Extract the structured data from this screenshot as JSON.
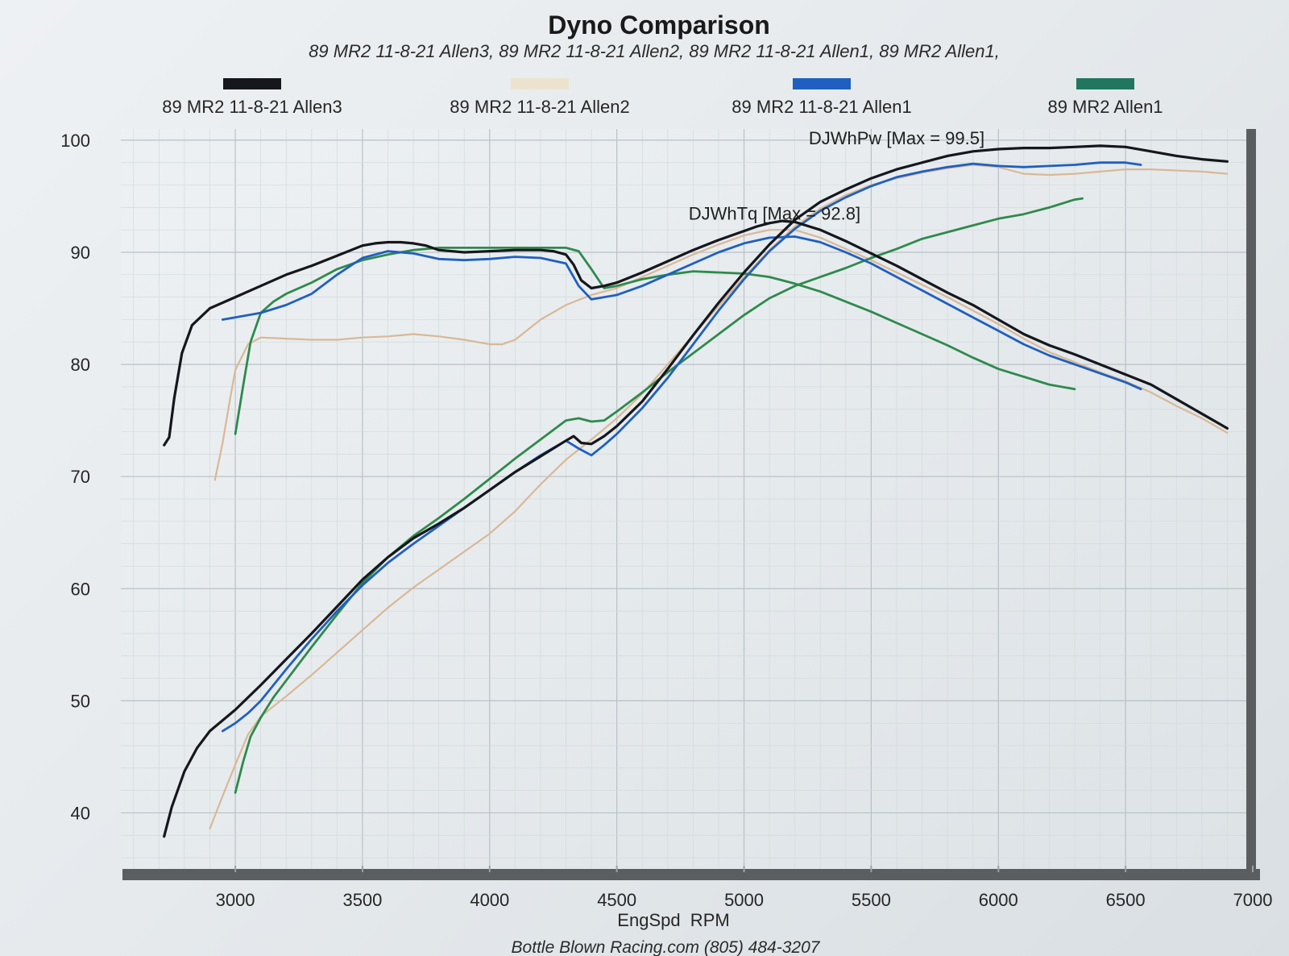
{
  "chart_data": {
    "type": "line",
    "title": "Dyno Comparison",
    "subtitle": "89 MR2 11-8-21 Allen3, 89 MR2 11-8-21 Allen2, 89 MR2 11-8-21 Allen1, 89 MR2 Allen1,",
    "xlabel": "EngSpd  RPM",
    "ylabel": "",
    "footer": "Bottle Blown Racing.com (805) 484-3207",
    "xlim": [
      2550,
      7000
    ],
    "ylim": [
      35,
      101
    ],
    "xticks": [
      "3000",
      "3500",
      "4000",
      "4500",
      "5000",
      "5500",
      "6000",
      "6500",
      "7000"
    ],
    "yticks": [
      "40",
      "50",
      "60",
      "70",
      "80",
      "90",
      "100"
    ],
    "legend_position": "top",
    "grid": true,
    "annotations": [
      {
        "text": "DJWhPw [Max = 99.5]",
        "x": 5600,
        "y": 100.2
      },
      {
        "text": "DJWhTq [Max = 92.8]",
        "x": 5120,
        "y": 93.5
      }
    ],
    "series": [
      {
        "name": "89 MR2 11-8-21 Allen3",
        "color": "#15171c",
        "torque": {
          "x": [
            2720,
            2740,
            2760,
            2790,
            2830,
            2900,
            3000,
            3100,
            3200,
            3300,
            3400,
            3500,
            3550,
            3600,
            3650,
            3700,
            3750,
            3800,
            3900,
            4000,
            4100,
            4200,
            4250,
            4300,
            4330,
            4360,
            4400,
            4450,
            4500,
            4600,
            4700,
            4800,
            4900,
            5000,
            5050,
            5100,
            5150,
            5200,
            5300,
            5400,
            5500,
            5600,
            5700,
            5800,
            5900,
            6000,
            6100,
            6200,
            6300,
            6400,
            6500,
            6600,
            6700,
            6800,
            6900
          ],
          "y": [
            72.8,
            73.5,
            77.0,
            81.0,
            83.5,
            85.0,
            86.0,
            87.0,
            88.0,
            88.8,
            89.7,
            90.6,
            90.8,
            90.9,
            90.9,
            90.8,
            90.6,
            90.2,
            90.0,
            90.1,
            90.2,
            90.2,
            90.1,
            89.8,
            88.9,
            87.5,
            86.8,
            87.0,
            87.3,
            88.2,
            89.2,
            90.2,
            91.1,
            91.9,
            92.3,
            92.6,
            92.8,
            92.7,
            92.0,
            91.0,
            89.9,
            88.8,
            87.6,
            86.4,
            85.3,
            84.0,
            82.7,
            81.7,
            80.9,
            80.0,
            79.1,
            78.2,
            76.9,
            75.6,
            74.3
          ]
        },
        "power": {
          "x": [
            2720,
            2750,
            2800,
            2850,
            2900,
            3000,
            3100,
            3200,
            3300,
            3400,
            3500,
            3600,
            3700,
            3800,
            3900,
            4000,
            4100,
            4200,
            4300,
            4330,
            4360,
            4400,
            4450,
            4500,
            4600,
            4700,
            4800,
            4900,
            5000,
            5100,
            5200,
            5300,
            5400,
            5500,
            5600,
            5700,
            5800,
            5900,
            6000,
            6100,
            6200,
            6300,
            6400,
            6500,
            6600,
            6700,
            6800,
            6900
          ],
          "y": [
            37.9,
            40.5,
            43.7,
            45.8,
            47.3,
            49.2,
            51.4,
            53.7,
            56.0,
            58.4,
            60.8,
            62.8,
            64.5,
            65.8,
            67.2,
            68.8,
            70.4,
            71.8,
            73.2,
            73.6,
            73.0,
            72.9,
            73.6,
            74.5,
            76.7,
            79.6,
            82.6,
            85.5,
            88.2,
            90.7,
            92.9,
            94.5,
            95.6,
            96.6,
            97.4,
            98.0,
            98.6,
            99.0,
            99.2,
            99.3,
            99.3,
            99.4,
            99.5,
            99.4,
            99.0,
            98.6,
            98.3,
            98.1
          ]
        }
      },
      {
        "name": "89 MR2 11-8-21 Allen2",
        "color": "#d9b896",
        "legend_color": "#ece3cf",
        "torque": {
          "x": [
            2920,
            2950,
            2980,
            3000,
            3050,
            3100,
            3200,
            3300,
            3400,
            3500,
            3600,
            3700,
            3800,
            3900,
            4000,
            4050,
            4100,
            4200,
            4300,
            4400,
            4500,
            4600,
            4700,
            4800,
            4900,
            5000,
            5100,
            5200,
            5300,
            5400,
            5500,
            5600,
            5700,
            5800,
            5900,
            6000,
            6100,
            6200,
            6300,
            6400,
            6500,
            6600,
            6700,
            6800,
            6900
          ],
          "y": [
            69.7,
            73.0,
            77.0,
            79.5,
            81.8,
            82.4,
            82.3,
            82.2,
            82.2,
            82.4,
            82.5,
            82.7,
            82.5,
            82.2,
            81.8,
            81.8,
            82.2,
            84.0,
            85.3,
            86.2,
            86.8,
            87.8,
            88.8,
            89.8,
            90.7,
            91.5,
            92.0,
            92.0,
            91.3,
            90.3,
            89.3,
            88.2,
            87.1,
            86.0,
            84.8,
            83.6,
            82.3,
            81.1,
            80.2,
            79.3,
            78.5,
            77.5,
            76.3,
            75.2,
            73.9
          ]
        },
        "power": {
          "x": [
            2900,
            2950,
            3000,
            3050,
            3100,
            3200,
            3300,
            3400,
            3500,
            3600,
            3700,
            3800,
            3900,
            4000,
            4100,
            4200,
            4300,
            4400,
            4500,
            4600,
            4700,
            4800,
            4900,
            5000,
            5100,
            5200,
            5300,
            5400,
            5500,
            5600,
            5700,
            5800,
            5900,
            6000,
            6100,
            6200,
            6300,
            6400,
            6500,
            6600,
            6700,
            6800,
            6900
          ],
          "y": [
            38.6,
            41.5,
            44.3,
            47.0,
            48.6,
            50.4,
            52.3,
            54.3,
            56.3,
            58.3,
            60.1,
            61.7,
            63.3,
            64.9,
            66.9,
            69.3,
            71.5,
            73.3,
            75.2,
            77.4,
            80.0,
            82.6,
            85.2,
            87.8,
            90.2,
            92.3,
            93.9,
            95.1,
            96.0,
            96.6,
            97.1,
            97.5,
            97.8,
            97.6,
            97.0,
            96.9,
            97.0,
            97.2,
            97.4,
            97.4,
            97.3,
            97.2,
            97.0
          ]
        }
      },
      {
        "name": "89 MR2 11-8-21 Allen1",
        "color": "#1f5fc0",
        "torque": {
          "x": [
            2950,
            3000,
            3100,
            3200,
            3300,
            3400,
            3500,
            3600,
            3700,
            3800,
            3900,
            4000,
            4100,
            4200,
            4300,
            4350,
            4400,
            4500,
            4600,
            4700,
            4800,
            4900,
            5000,
            5100,
            5200,
            5300,
            5400,
            5500,
            5600,
            5700,
            5800,
            5900,
            6000,
            6100,
            6200,
            6300,
            6400,
            6500,
            6560
          ],
          "y": [
            84.0,
            84.2,
            84.6,
            85.3,
            86.3,
            88.0,
            89.5,
            90.1,
            89.9,
            89.4,
            89.3,
            89.4,
            89.6,
            89.5,
            89.0,
            87.0,
            85.8,
            86.2,
            87.0,
            88.0,
            89.0,
            90.0,
            90.8,
            91.3,
            91.4,
            90.9,
            90.0,
            89.0,
            87.8,
            86.6,
            85.4,
            84.2,
            83.0,
            81.8,
            80.8,
            80.0,
            79.2,
            78.4,
            77.8
          ]
        },
        "power": {
          "x": [
            2950,
            3000,
            3050,
            3100,
            3200,
            3300,
            3400,
            3500,
            3600,
            3700,
            3800,
            3900,
            4000,
            4100,
            4200,
            4300,
            4350,
            4400,
            4450,
            4500,
            4600,
            4700,
            4800,
            4900,
            5000,
            5100,
            5200,
            5300,
            5400,
            5500,
            5600,
            5700,
            5800,
            5900,
            6000,
            6100,
            6200,
            6300,
            6400,
            6500,
            6560
          ],
          "y": [
            47.3,
            48.0,
            48.9,
            50.0,
            52.8,
            55.5,
            58.0,
            60.3,
            62.3,
            64.0,
            65.6,
            67.2,
            68.8,
            70.4,
            71.9,
            73.2,
            72.5,
            71.9,
            72.8,
            73.8,
            76.1,
            78.8,
            81.8,
            84.8,
            87.6,
            90.1,
            92.1,
            93.7,
            94.9,
            95.9,
            96.7,
            97.2,
            97.6,
            97.9,
            97.7,
            97.6,
            97.7,
            97.8,
            98.0,
            98.0,
            97.8
          ]
        }
      },
      {
        "name": "89 MR2 Allen1",
        "color": "#2e8a4c",
        "legend_color": "#21765f",
        "torque": {
          "x": [
            3000,
            3030,
            3060,
            3100,
            3150,
            3200,
            3300,
            3400,
            3500,
            3600,
            3700,
            3800,
            3900,
            4000,
            4100,
            4200,
            4300,
            4350,
            4400,
            4450,
            4500,
            4600,
            4700,
            4800,
            4900,
            5000,
            5100,
            5200,
            5300,
            5400,
            5500,
            5600,
            5700,
            5800,
            5900,
            6000,
            6100,
            6200,
            6300
          ],
          "y": [
            73.8,
            78.0,
            82.0,
            84.6,
            85.6,
            86.3,
            87.3,
            88.5,
            89.3,
            89.8,
            90.2,
            90.4,
            90.4,
            90.4,
            90.4,
            90.4,
            90.4,
            90.1,
            88.5,
            86.8,
            87.0,
            87.6,
            88.0,
            88.3,
            88.2,
            88.1,
            87.8,
            87.2,
            86.5,
            85.6,
            84.7,
            83.7,
            82.7,
            81.7,
            80.6,
            79.6,
            78.9,
            78.2,
            77.8
          ]
        },
        "power": {
          "x": [
            3000,
            3030,
            3060,
            3100,
            3150,
            3200,
            3300,
            3400,
            3500,
            3600,
            3700,
            3800,
            3900,
            4000,
            4100,
            4200,
            4300,
            4350,
            4400,
            4450,
            4500,
            4600,
            4700,
            4800,
            4900,
            5000,
            5100,
            5200,
            5300,
            5400,
            5500,
            5600,
            5700,
            5800,
            5900,
            6000,
            6100,
            6200,
            6300,
            6330
          ],
          "y": [
            41.8,
            44.5,
            46.8,
            48.5,
            50.3,
            51.8,
            54.8,
            57.7,
            60.5,
            62.8,
            64.7,
            66.3,
            68.0,
            69.8,
            71.6,
            73.3,
            75.0,
            75.2,
            74.9,
            75.0,
            75.8,
            77.5,
            79.3,
            81.0,
            82.7,
            84.4,
            85.9,
            87.0,
            87.8,
            88.6,
            89.5,
            90.3,
            91.2,
            91.8,
            92.4,
            93.0,
            93.4,
            94.0,
            94.7,
            94.8
          ]
        }
      }
    ]
  }
}
